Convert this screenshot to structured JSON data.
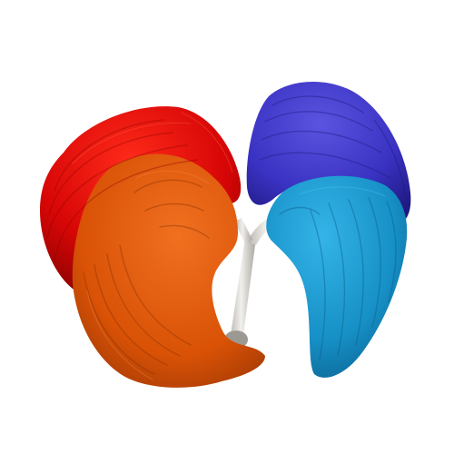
{
  "scene": {
    "background": "#ffffff",
    "structures": [
      {
        "name": "right-upper-lobe",
        "color": "#e00808"
      },
      {
        "name": "right-lower-lobe",
        "color": "#e25608"
      },
      {
        "name": "left-upper-lobe",
        "color": "#3a34c4"
      },
      {
        "name": "left-lower-lobe",
        "color": "#1a92c8"
      },
      {
        "name": "trachea",
        "color": "#d9d6d2"
      }
    ]
  }
}
